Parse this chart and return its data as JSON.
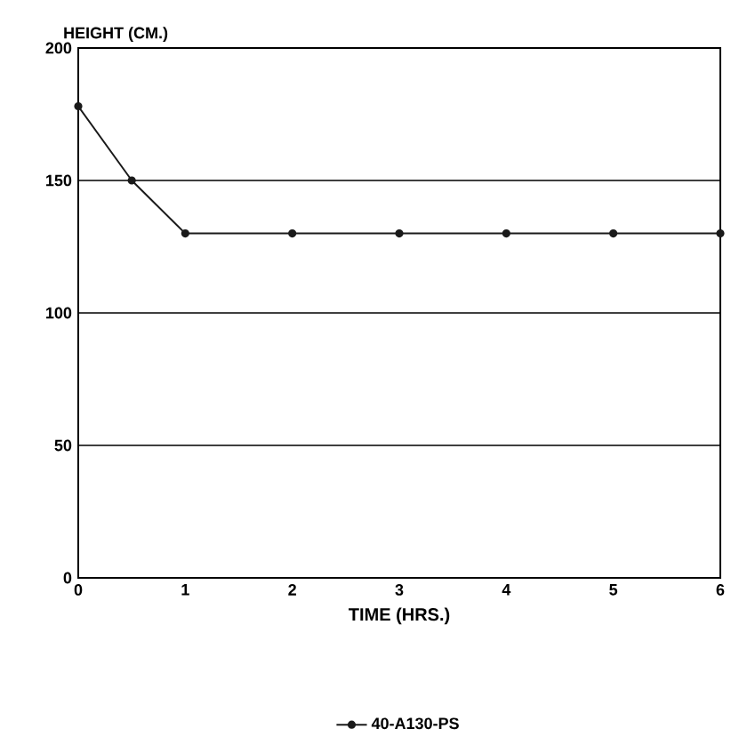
{
  "chart_data": {
    "type": "line",
    "xlabel": "TIME (HRS.)",
    "ylabel": "HEIGHT (CM.)",
    "x": [
      0,
      0.5,
      1,
      2,
      3,
      4,
      5,
      6
    ],
    "series": [
      {
        "name": "40-A130-PS",
        "color": "#1a1a1a",
        "values": [
          178,
          150,
          130,
          130,
          130,
          130,
          130,
          130
        ]
      }
    ],
    "xlim": [
      0,
      6
    ],
    "xticks": [
      0,
      1,
      2,
      3,
      4,
      5,
      6
    ],
    "ylim": [
      0,
      200
    ],
    "yticks": [
      0,
      50,
      100,
      150,
      200
    ],
    "grid": "y",
    "legend": "bottom",
    "marker": "circle",
    "line_style": "solid"
  }
}
